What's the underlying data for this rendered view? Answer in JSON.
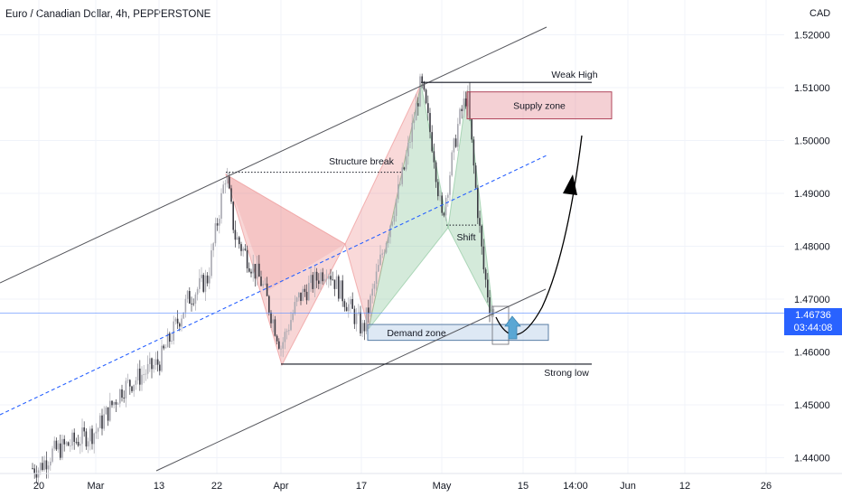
{
  "header": {
    "title": "Euro / Canadian Dollar, 4h, PEPPERSTONE",
    "currency": "CAD"
  },
  "price_tag": {
    "price": "1.46736",
    "countdown": "03:44:08"
  },
  "chart_data": {
    "type": "candlestick",
    "title": "Euro / Canadian Dollar, 4h, PEPPERSTONE",
    "y_unit": "CAD",
    "ylim": [
      1.434,
      1.527
    ],
    "y_ticks": [
      "1.52000",
      "1.51000",
      "1.50000",
      "1.49000",
      "1.48000",
      "1.47000",
      "1.46000",
      "1.45000",
      "1.44000"
    ],
    "x_ticks": [
      "20",
      "Mar",
      "13",
      "22",
      "Apr",
      "17",
      "May",
      "15",
      "14:00",
      "Jun",
      "12",
      "26"
    ],
    "price_path": [
      {
        "t": "20 Feb",
        "price": 1.438
      },
      {
        "t": "24 Feb",
        "price": 1.441
      },
      {
        "t": "Mar",
        "price": 1.445
      },
      {
        "t": "08 Mar",
        "price": 1.453
      },
      {
        "t": "13 Mar",
        "price": 1.458
      },
      {
        "t": "17 Mar",
        "price": 1.47
      },
      {
        "t": "21 Mar",
        "price": 1.474
      },
      {
        "t": "22 Mar",
        "price": 1.494
      },
      {
        "t": "24 Mar",
        "price": 1.482
      },
      {
        "t": "28 Mar",
        "price": 1.473
      },
      {
        "t": "Apr",
        "price": 1.461
      },
      {
        "t": "04 Apr",
        "price": 1.47
      },
      {
        "t": "10 Apr",
        "price": 1.476
      },
      {
        "t": "14 Apr",
        "price": 1.469
      },
      {
        "t": "17 Apr",
        "price": 1.464
      },
      {
        "t": "21 Apr",
        "price": 1.48
      },
      {
        "t": "24 Apr",
        "price": 1.495
      },
      {
        "t": "26 Apr",
        "price": 1.511
      },
      {
        "t": "29 Apr",
        "price": 1.498
      },
      {
        "t": "May",
        "price": 1.485
      },
      {
        "t": "03 May",
        "price": 1.503
      },
      {
        "t": "05 May",
        "price": 1.509
      },
      {
        "t": "07 May",
        "price": 1.49
      },
      {
        "t": "09 May",
        "price": 1.476
      },
      {
        "t": "11 May",
        "price": 1.468
      },
      {
        "t": "12 May",
        "price": 1.4674
      }
    ],
    "levels": [
      {
        "label": "Weak High",
        "price": 1.511
      },
      {
        "label": "Strong low",
        "price": 1.4577
      },
      {
        "label": "Structure break",
        "price": 1.494
      },
      {
        "label": "Shift",
        "price": 1.484
      },
      {
        "label": "",
        "price": 1.46736
      }
    ],
    "zones": [
      {
        "label": "Supply zone",
        "from_price": 1.5041,
        "to_price": 1.5092
      },
      {
        "label": "Demand zone",
        "from_price": 1.4622,
        "to_price": 1.4652
      }
    ]
  }
}
